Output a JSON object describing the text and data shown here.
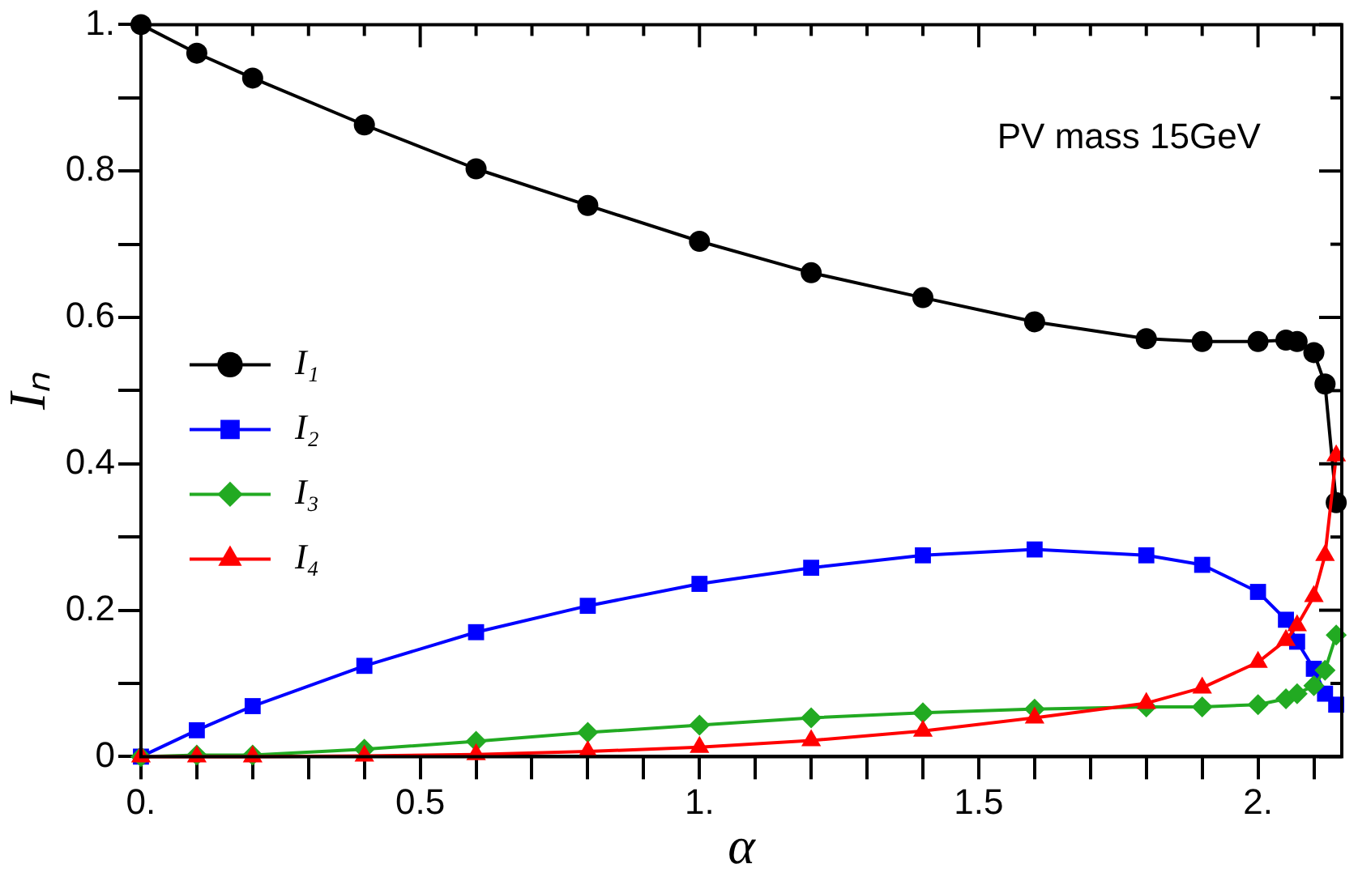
{
  "chart_data": {
    "type": "line",
    "xlabel": "α",
    "ylabel": "Iₙ",
    "annotations": [
      "PV mass 15GeV"
    ],
    "x": [
      0,
      0.1,
      0.2,
      0.4,
      0.6,
      0.8,
      1.0,
      1.2,
      1.4,
      1.6,
      1.8,
      1.9,
      2.0,
      2.05,
      2.07,
      2.1,
      2.12,
      2.14
    ],
    "series": [
      {
        "name": "I₁",
        "color": "#000000",
        "marker": "circle",
        "values": [
          1.0,
          0.961,
          0.927,
          0.863,
          0.803,
          0.753,
          0.704,
          0.661,
          0.627,
          0.594,
          0.571,
          0.567,
          0.567,
          0.569,
          0.567,
          0.552,
          0.509,
          0.347
        ]
      },
      {
        "name": "I₂",
        "color": "#0000ff",
        "marker": "square",
        "values": [
          0,
          0.036,
          0.069,
          0.124,
          0.17,
          0.206,
          0.236,
          0.258,
          0.275,
          0.283,
          0.275,
          0.262,
          0.225,
          0.187,
          0.157,
          0.12,
          0.086,
          0.071
        ]
      },
      {
        "name": "I₃",
        "color": "#22aa22",
        "marker": "diamond",
        "values": [
          0,
          0.002,
          0.002,
          0.01,
          0.021,
          0.033,
          0.043,
          0.053,
          0.06,
          0.065,
          0.068,
          0.068,
          0.071,
          0.079,
          0.086,
          0.097,
          0.118,
          0.166
        ]
      },
      {
        "name": "I₄",
        "color": "#ff0000",
        "marker": "triangle",
        "values": [
          0,
          0,
          0,
          0.001,
          0.003,
          0.007,
          0.013,
          0.022,
          0.035,
          0.053,
          0.073,
          0.094,
          0.129,
          0.159,
          0.179,
          0.219,
          0.275,
          0.411
        ]
      }
    ],
    "xlim": [
      0,
      2.15
    ],
    "xticks": [
      {
        "value": 0,
        "label": "0."
      },
      {
        "value": 0.1,
        "label": null
      },
      {
        "value": 0.2,
        "label": null
      },
      {
        "value": 0.3,
        "label": null
      },
      {
        "value": 0.4,
        "label": null
      },
      0.5,
      {
        "value": 0.6,
        "label": null
      },
      {
        "value": 0.7,
        "label": null
      },
      {
        "value": 0.8,
        "label": null
      },
      {
        "value": 0.9,
        "label": null
      },
      {
        "value": 1,
        "label": "1."
      },
      {
        "value": 1.1,
        "label": null
      },
      {
        "value": 1.2,
        "label": null
      },
      {
        "value": 1.3,
        "label": null
      },
      {
        "value": 1.4,
        "label": null
      },
      1.5,
      {
        "value": 1.6,
        "label": null
      },
      {
        "value": 1.7,
        "label": null
      },
      {
        "value": 1.8,
        "label": null
      },
      {
        "value": 1.9,
        "label": null
      },
      {
        "value": 2,
        "label": "2."
      },
      {
        "value": 2.1,
        "label": null
      }
    ],
    "ylim": [
      0,
      1
    ],
    "yticks": [
      0,
      {
        "value": 0.1,
        "label": null
      },
      0.2,
      {
        "value": 0.3,
        "label": null
      },
      0.4,
      {
        "value": 0.5,
        "label": null
      },
      0.6,
      {
        "value": 0.7,
        "label": null
      },
      0.8,
      {
        "value": 0.9,
        "label": null
      },
      {
        "value": 1,
        "label": "1."
      }
    ],
    "grid": false,
    "legend": "left",
    "line_style": "solid"
  }
}
